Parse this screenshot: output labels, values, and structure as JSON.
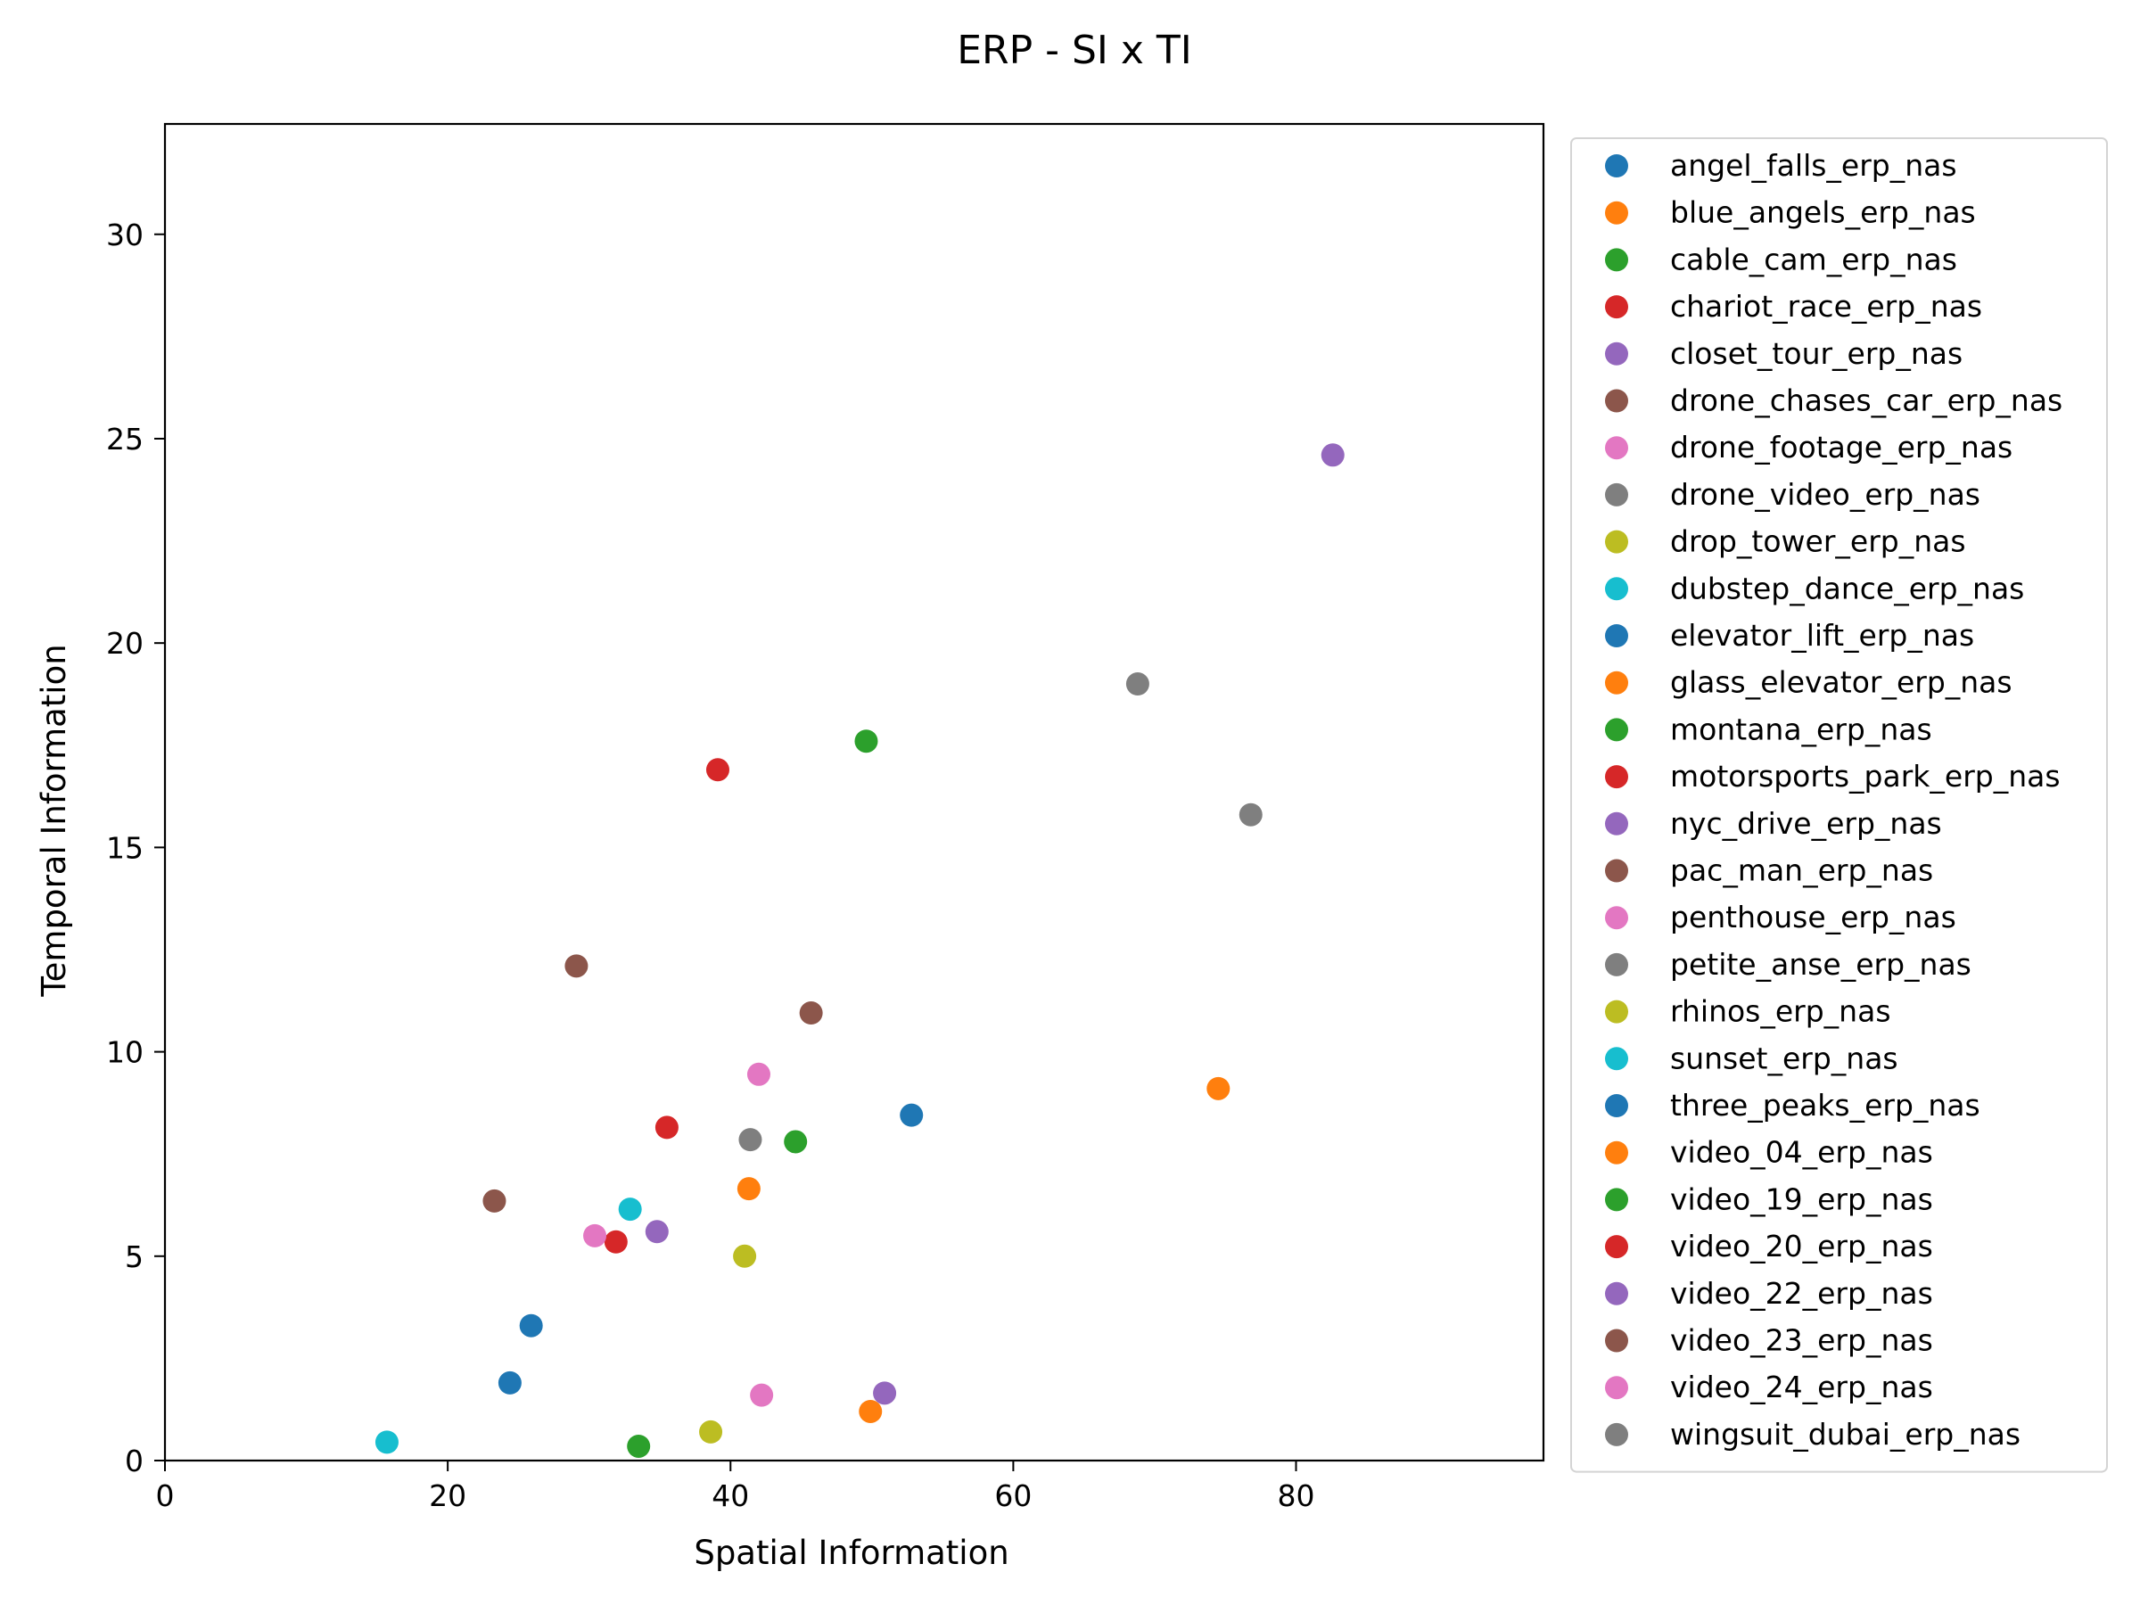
{
  "chart_data": {
    "type": "scatter",
    "title": "ERP - SI x TI",
    "xlabel": "Spatial Information",
    "ylabel": "Temporal Information",
    "xlim": [
      0,
      97.5
    ],
    "ylim": [
      0,
      32.7
    ],
    "xticks": [
      0,
      20,
      40,
      60,
      80
    ],
    "yticks": [
      0,
      5,
      10,
      15,
      20,
      25,
      30
    ],
    "grid": false,
    "legend_position": "outside-right",
    "series": [
      {
        "name": "angel_falls_erp_nas",
        "color": "#1f77b4",
        "x": [
          24.4
        ],
        "y": [
          1.9
        ]
      },
      {
        "name": "blue_angels_erp_nas",
        "color": "#ff7f0e",
        "x": [
          74.5
        ],
        "y": [
          9.1
        ]
      },
      {
        "name": "cable_cam_erp_nas",
        "color": "#2ca02c",
        "x": [
          49.6
        ],
        "y": [
          17.6
        ]
      },
      {
        "name": "chariot_race_erp_nas",
        "color": "#d62728",
        "x": [
          31.9
        ],
        "y": [
          5.35
        ]
      },
      {
        "name": "closet_tour_erp_nas",
        "color": "#9467bd",
        "x": [
          34.8
        ],
        "y": [
          5.6
        ]
      },
      {
        "name": "drone_chases_car_erp_nas",
        "color": "#8c564b",
        "x": [
          29.1
        ],
        "y": [
          12.1
        ]
      },
      {
        "name": "drone_footage_erp_nas",
        "color": "#e377c2",
        "x": [
          42.2
        ],
        "y": [
          1.6
        ]
      },
      {
        "name": "drone_video_erp_nas",
        "color": "#7f7f7f",
        "x": [
          76.8
        ],
        "y": [
          15.8
        ]
      },
      {
        "name": "drop_tower_erp_nas",
        "color": "#bcbd22",
        "x": [
          41.0
        ],
        "y": [
          5.0
        ]
      },
      {
        "name": "dubstep_dance_erp_nas",
        "color": "#17becf",
        "x": [
          15.7
        ],
        "y": [
          0.45
        ]
      },
      {
        "name": "elevator_lift_erp_nas",
        "color": "#1f77b4",
        "x": [
          52.8
        ],
        "y": [
          8.45
        ]
      },
      {
        "name": "glass_elevator_erp_nas",
        "color": "#ff7f0e",
        "x": [
          49.9
        ],
        "y": [
          1.2
        ]
      },
      {
        "name": "montana_erp_nas",
        "color": "#2ca02c",
        "x": [
          33.5
        ],
        "y": [
          0.35
        ]
      },
      {
        "name": "motorsports_park_erp_nas",
        "color": "#d62728",
        "x": [
          35.5
        ],
        "y": [
          8.15
        ]
      },
      {
        "name": "nyc_drive_erp_nas",
        "color": "#9467bd",
        "x": [
          50.9
        ],
        "y": [
          1.65
        ]
      },
      {
        "name": "pac_man_erp_nas",
        "color": "#8c564b",
        "x": [
          23.3
        ],
        "y": [
          6.35
        ]
      },
      {
        "name": "penthouse_erp_nas",
        "color": "#e377c2",
        "x": [
          30.4
        ],
        "y": [
          5.5
        ]
      },
      {
        "name": "petite_anse_erp_nas",
        "color": "#7f7f7f",
        "x": [
          68.8
        ],
        "y": [
          19.0
        ]
      },
      {
        "name": "rhinos_erp_nas",
        "color": "#bcbd22",
        "x": [
          38.6
        ],
        "y": [
          0.7
        ]
      },
      {
        "name": "sunset_erp_nas",
        "color": "#17becf",
        "x": [
          32.9
        ],
        "y": [
          6.15
        ]
      },
      {
        "name": "three_peaks_erp_nas",
        "color": "#1f77b4",
        "x": [
          25.9
        ],
        "y": [
          3.3
        ]
      },
      {
        "name": "video_04_erp_nas",
        "color": "#ff7f0e",
        "x": [
          41.3
        ],
        "y": [
          6.65
        ]
      },
      {
        "name": "video_19_erp_nas",
        "color": "#2ca02c",
        "x": [
          44.6
        ],
        "y": [
          7.8
        ]
      },
      {
        "name": "video_20_erp_nas",
        "color": "#d62728",
        "x": [
          39.1
        ],
        "y": [
          16.9
        ]
      },
      {
        "name": "video_22_erp_nas",
        "color": "#9467bd",
        "x": [
          82.6
        ],
        "y": [
          24.6
        ]
      },
      {
        "name": "video_23_erp_nas",
        "color": "#8c564b",
        "x": [
          45.7
        ],
        "y": [
          10.95
        ]
      },
      {
        "name": "video_24_erp_nas",
        "color": "#e377c2",
        "x": [
          42.0
        ],
        "y": [
          9.45
        ]
      },
      {
        "name": "wingsuit_dubai_erp_nas",
        "color": "#7f7f7f",
        "x": [
          41.4
        ],
        "y": [
          7.85
        ]
      }
    ]
  }
}
